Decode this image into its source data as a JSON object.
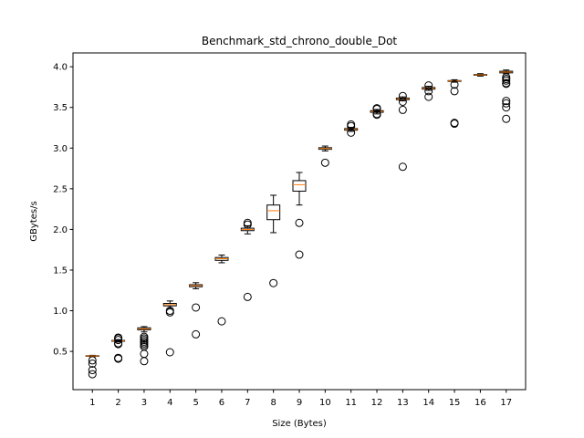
{
  "chart_data": {
    "type": "box",
    "title": "Benchmark_std_chrono_double_Dot",
    "xlabel": "Size (Bytes)",
    "ylabel": "GBytes/s",
    "ylim": [
      0.03,
      4.17
    ],
    "yticks": [
      0.5,
      1.0,
      1.5,
      2.0,
      2.5,
      3.0,
      3.5,
      4.0
    ],
    "ytick_labels": [
      "0.5",
      "1.0",
      "1.5",
      "2.0",
      "2.5",
      "3.0",
      "3.5",
      "4.0"
    ],
    "categories": [
      "1",
      "2",
      "3",
      "4",
      "5",
      "6",
      "7",
      "8",
      "9",
      "10",
      "11",
      "12",
      "13",
      "14",
      "15",
      "16",
      "17"
    ],
    "grid": false,
    "colors": {
      "box": "#000000",
      "median": "#ff7f0e",
      "flier": "#000000"
    },
    "boxes": [
      {
        "x": "1",
        "whislo": 0.435,
        "q1": 0.44,
        "med": 0.445,
        "q3": 0.448,
        "whishi": 0.452,
        "fliers": [
          0.39,
          0.35,
          0.27,
          0.22
        ]
      },
      {
        "x": "2",
        "whislo": 0.615,
        "q1": 0.625,
        "med": 0.63,
        "q3": 0.635,
        "whishi": 0.645,
        "fliers": [
          0.67,
          0.66,
          0.64,
          0.6,
          0.59,
          0.42,
          0.41
        ]
      },
      {
        "x": "3",
        "whislo": 0.74,
        "q1": 0.765,
        "med": 0.775,
        "q3": 0.79,
        "whishi": 0.805,
        "fliers": [
          0.68,
          0.66,
          0.64,
          0.62,
          0.6,
          0.58,
          0.56,
          0.47,
          0.38
        ]
      },
      {
        "x": "4",
        "whislo": 1.03,
        "q1": 1.06,
        "med": 1.075,
        "q3": 1.09,
        "whishi": 1.12,
        "fliers": [
          1.0,
          0.98,
          0.49
        ]
      },
      {
        "x": "5",
        "whislo": 1.27,
        "q1": 1.295,
        "med": 1.31,
        "q3": 1.32,
        "whishi": 1.345,
        "fliers": [
          1.04,
          0.71
        ]
      },
      {
        "x": "6",
        "whislo": 1.59,
        "q1": 1.62,
        "med": 1.64,
        "q3": 1.655,
        "whishi": 1.685,
        "fliers": [
          0.87
        ]
      },
      {
        "x": "7",
        "whislo": 1.945,
        "q1": 1.985,
        "med": 2.0,
        "q3": 2.015,
        "whishi": 2.045,
        "fliers": [
          2.08,
          2.06,
          1.17
        ]
      },
      {
        "x": "8",
        "whislo": 1.96,
        "q1": 2.12,
        "med": 2.23,
        "q3": 2.3,
        "whishi": 2.42,
        "fliers": [
          1.34
        ]
      },
      {
        "x": "9",
        "whislo": 2.3,
        "q1": 2.47,
        "med": 2.55,
        "q3": 2.6,
        "whishi": 2.7,
        "fliers": [
          2.08,
          1.69
        ]
      },
      {
        "x": "10",
        "whislo": 2.965,
        "q1": 2.985,
        "med": 2.995,
        "q3": 3.005,
        "whishi": 3.025,
        "fliers": [
          2.82
        ]
      },
      {
        "x": "11",
        "whislo": 3.205,
        "q1": 3.22,
        "med": 3.23,
        "q3": 3.24,
        "whishi": 3.255,
        "fliers": [
          3.29,
          3.27,
          3.19
        ]
      },
      {
        "x": "12",
        "whislo": 3.42,
        "q1": 3.44,
        "med": 3.45,
        "q3": 3.46,
        "whishi": 3.475,
        "fliers": [
          3.49,
          3.48,
          3.42,
          3.41
        ]
      },
      {
        "x": "13",
        "whislo": 3.58,
        "q1": 3.595,
        "med": 3.605,
        "q3": 3.615,
        "whishi": 3.63,
        "fliers": [
          3.64,
          3.57,
          3.47,
          2.77
        ]
      },
      {
        "x": "14",
        "whislo": 3.71,
        "q1": 3.725,
        "med": 3.735,
        "q3": 3.745,
        "whishi": 3.76,
        "fliers": [
          3.77,
          3.7,
          3.63
        ]
      },
      {
        "x": "15",
        "whislo": 3.81,
        "q1": 3.82,
        "med": 3.825,
        "q3": 3.83,
        "whishi": 3.84,
        "fliers": [
          3.78,
          3.7,
          3.31,
          3.3
        ]
      },
      {
        "x": "16",
        "whislo": 3.885,
        "q1": 3.895,
        "med": 3.9,
        "q3": 3.905,
        "whishi": 3.915,
        "fliers": []
      },
      {
        "x": "17",
        "whislo": 3.915,
        "q1": 3.925,
        "med": 3.935,
        "q3": 3.945,
        "whishi": 3.96,
        "fliers": [
          3.87,
          3.85,
          3.83,
          3.8,
          3.79,
          3.58,
          3.55,
          3.5,
          3.36
        ]
      }
    ]
  }
}
